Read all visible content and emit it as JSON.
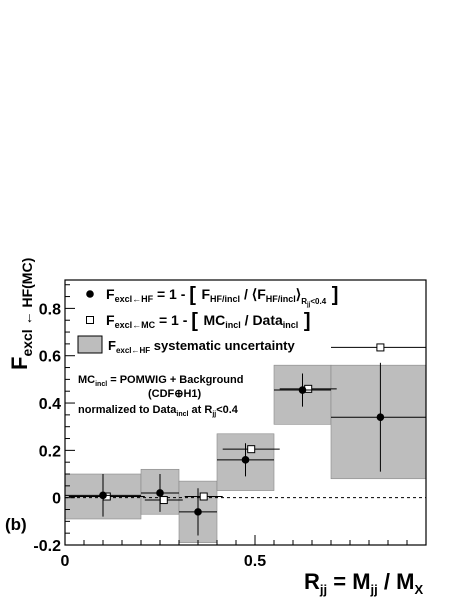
{
  "chart_data": {
    "type": "scatter",
    "panel_label": "(b)",
    "xlabel": {
      "main": "R",
      "sub": "jj",
      "rest": " = M",
      "sub2": "jj",
      "rest2": " / M",
      "sub3": "X"
    },
    "ylabel": {
      "main": "F",
      "sub": "excl ← HF(MC)"
    },
    "xlim": [
      0,
      0.95
    ],
    "ylim": [
      -0.2,
      0.92
    ],
    "x_ticks": [
      {
        "value": 0,
        "label": "0"
      },
      {
        "value": 0.5,
        "label": "0.5"
      }
    ],
    "y_ticks": [
      {
        "value": -0.2,
        "label": "-0.2"
      },
      {
        "value": 0,
        "label": "0"
      },
      {
        "value": 0.2,
        "label": "0.2"
      },
      {
        "value": 0.4,
        "label": "0.4"
      },
      {
        "value": 0.6,
        "label": "0.6"
      },
      {
        "value": 0.8,
        "label": "0.8"
      }
    ],
    "reference_line": {
      "y": 0,
      "style": "dashed"
    },
    "legend": {
      "hf": {
        "sym": "F",
        "sub": "excl←HF",
        "eq": " = 1 - ",
        "f1": "F",
        "s1": "HF/incl",
        "slash": " / ",
        "f2": "⟨F",
        "s2": "HF/incl",
        "close": "⟩",
        "s3": "R",
        "s4": "jj",
        "s5": "<0.4"
      },
      "mc": {
        "sym": "F",
        "sub": "excl←MC",
        "eq": " = 1 - ",
        "t1": "MC",
        "s1": "incl",
        "slash": " / Data",
        "s2": "incl"
      },
      "syst": {
        "sym": "F",
        "sub": "excl←HF",
        "text": " systematic uncertainty"
      }
    },
    "annotation": {
      "line1_a": "MC",
      "line1_sub": "incl",
      "line1_b": " = POMWIG + Background",
      "line2": "(CDF⊕H1)",
      "line3_a": "normalized to Data",
      "line3_sub": "incl",
      "line3_b": " at R",
      "line3_sub2": "jj",
      "line3_c": "<0.4"
    },
    "series": [
      {
        "marker": "filled-circle",
        "points": [
          {
            "x": 0.1,
            "y": 0.01,
            "xerr": 0.1,
            "yerr": 0.09,
            "syst_lo": -0.09,
            "syst_hi": 0.1,
            "band_x": [
              0.0,
              0.2
            ]
          },
          {
            "x": 0.25,
            "y": 0.02,
            "xerr": 0.05,
            "yerr": 0.08,
            "syst_lo": -0.07,
            "syst_hi": 0.12,
            "band_x": [
              0.2,
              0.3
            ]
          },
          {
            "x": 0.35,
            "y": -0.06,
            "xerr": 0.05,
            "yerr": 0.1,
            "syst_lo": -0.19,
            "syst_hi": 0.07,
            "band_x": [
              0.3,
              0.4
            ]
          },
          {
            "x": 0.475,
            "y": 0.16,
            "xerr": 0.075,
            "yerr": 0.07,
            "syst_lo": 0.03,
            "syst_hi": 0.27,
            "band_x": [
              0.4,
              0.55
            ]
          },
          {
            "x": 0.625,
            "y": 0.455,
            "xerr": 0.075,
            "yerr": 0.07,
            "syst_lo": 0.31,
            "syst_hi": 0.56,
            "band_x": [
              0.55,
              0.7
            ]
          },
          {
            "x": 0.83,
            "y": 0.34,
            "xerr": 0.13,
            "yerr": 0.23,
            "syst_lo": 0.08,
            "syst_hi": 0.56,
            "band_x": [
              0.7,
              0.96
            ]
          }
        ]
      },
      {
        "marker": "open-square",
        "points": [
          {
            "x": 0.11,
            "y": 0.005,
            "xerr": 0.1
          },
          {
            "x": 0.26,
            "y": -0.01,
            "xerr": 0.05
          },
          {
            "x": 0.365,
            "y": 0.005,
            "xerr": 0.05
          },
          {
            "x": 0.49,
            "y": 0.205,
            "xerr": 0.075
          },
          {
            "x": 0.64,
            "y": 0.46,
            "xerr": 0.075
          },
          {
            "x": 0.83,
            "y": 0.635,
            "xerr": 0.13
          }
        ]
      }
    ]
  }
}
